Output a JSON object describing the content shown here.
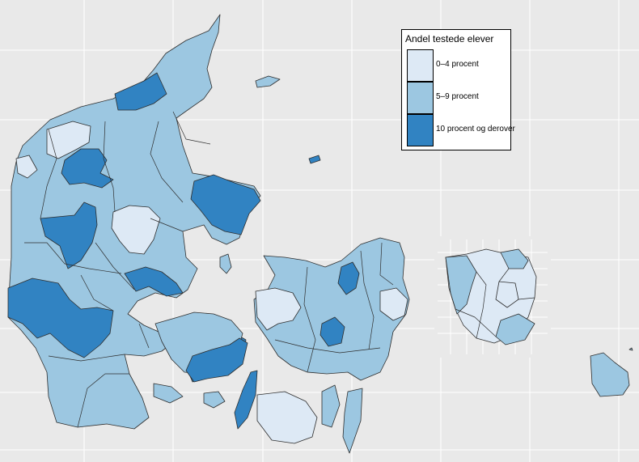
{
  "legend": {
    "title": "Andel testede elever",
    "items": [
      {
        "label": "0–4 procent",
        "color": "#dde9f5"
      },
      {
        "label": "5–9 procent",
        "color": "#9cc7e1"
      },
      {
        "label": "10 procent og derover",
        "color": "#3183c2"
      }
    ]
  },
  "colors": {
    "background": "#e9e9e9",
    "grid": "#ffffff",
    "border": "#2e2e2e"
  },
  "map": {
    "classes": [
      "low",
      "mid",
      "high"
    ]
  }
}
